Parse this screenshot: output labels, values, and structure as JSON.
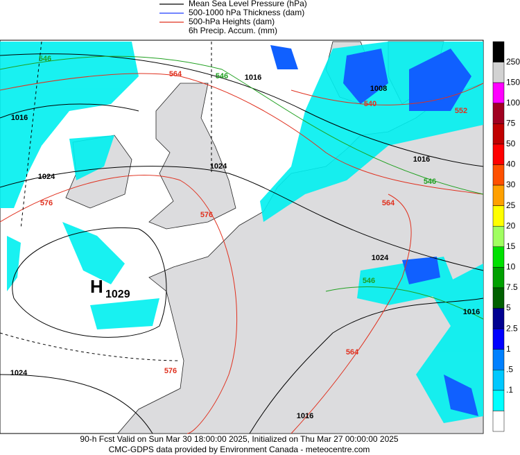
{
  "legend": [
    {
      "label": "Mean Sea Level Pressure (hPa)",
      "color": "#000000"
    },
    {
      "label": "500-1000 hPa Thickness (dam)",
      "color": "#1f3cff"
    },
    {
      "label": "500-hPa Heights (dam)",
      "color": "#e0301e"
    },
    {
      "label": "6h Precip. Accum. (mm)"
    }
  ],
  "colorbar": {
    "labels": [
      "250",
      "150",
      "100",
      "75",
      "50",
      "40",
      "30",
      "25",
      "20",
      "15",
      "10",
      "7.5",
      "5",
      "2.5",
      "1",
      ".5",
      ".1"
    ],
    "colors": [
      "#000000",
      "#d2d2d2",
      "#ff00ff",
      "#a00020",
      "#c00000",
      "#ff0000",
      "#ff5000",
      "#ffa000",
      "#ffff00",
      "#a0ff60",
      "#00e000",
      "#00a000",
      "#006000",
      "#000090",
      "#0000ff",
      "#0080ff",
      "#00c8ff",
      "#00ffff",
      "#ffffff"
    ]
  },
  "high": {
    "letter": "H",
    "value": "1029"
  },
  "contour_labels": [
    {
      "text": "546",
      "color": "#1fa01f"
    },
    {
      "text": "564",
      "color": "#e0301e"
    },
    {
      "text": "546",
      "color": "#1fa01f"
    },
    {
      "text": "1016",
      "color": "#000000"
    },
    {
      "text": "1016",
      "color": "#000000"
    },
    {
      "text": "1024",
      "color": "#000000"
    },
    {
      "text": "1024",
      "color": "#000000"
    },
    {
      "text": "576",
      "color": "#e0301e"
    },
    {
      "text": "576",
      "color": "#e0301e"
    },
    {
      "text": "1008",
      "color": "#000000"
    },
    {
      "text": "540",
      "color": "#e0301e"
    },
    {
      "text": "552",
      "color": "#e0301e"
    },
    {
      "text": "1016",
      "color": "#000000"
    },
    {
      "text": "546",
      "color": "#1fa01f"
    },
    {
      "text": "564",
      "color": "#e0301e"
    },
    {
      "text": "1024",
      "color": "#000000"
    },
    {
      "text": "546",
      "color": "#1fa01f"
    },
    {
      "text": "564",
      "color": "#e0301e"
    },
    {
      "text": "576",
      "color": "#e0301e"
    },
    {
      "text": "1024",
      "color": "#000000"
    },
    {
      "text": "1016",
      "color": "#000000"
    },
    {
      "text": "1016",
      "color": "#000000"
    }
  ],
  "footer": [
    "90-h Fcst Valid on Sun Mar 30 18:00:00 2025, Initialized on Thu Mar 27 00:00:00 2025",
    "CMC-GDPS data provided by Environment Canada - meteocentre.com"
  ]
}
